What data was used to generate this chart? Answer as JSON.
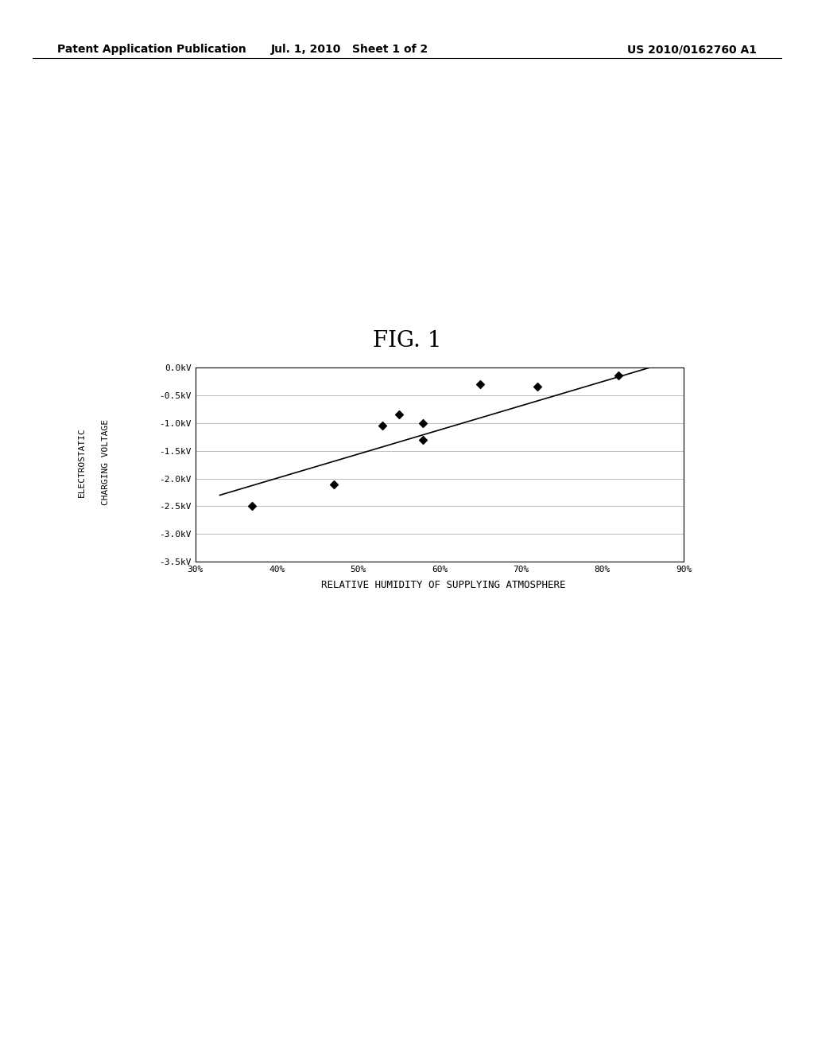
{
  "title": "FIG. 1",
  "xlabel": "RELATIVE HUMIDITY OF SUPPLYING ATMOSPHERE",
  "ylabel_line1": "ELECTROSTATIC",
  "ylabel_line2": "CHARGING VOLTAGE",
  "scatter_x": [
    37,
    47,
    53,
    55,
    58,
    58,
    65,
    72,
    82
  ],
  "scatter_y": [
    -2.5,
    -2.1,
    -1.05,
    -0.85,
    -1.0,
    -1.3,
    -0.3,
    -0.35,
    -0.15
  ],
  "trendline_x": [
    33,
    87
  ],
  "trendline_y": [
    -2.3,
    0.05
  ],
  "xlim": [
    30,
    90
  ],
  "ylim_min": -3.5,
  "ylim_max": 0.0,
  "xticks": [
    30,
    40,
    50,
    60,
    70,
    80,
    90
  ],
  "yticks": [
    0.0,
    -0.5,
    -1.0,
    -1.5,
    -2.0,
    -2.5,
    -3.0,
    -3.5
  ],
  "ytick_labels": [
    "0.0kV",
    "-0.5kV",
    "-1.0kV",
    "-1.5kV",
    "-2.0kV",
    "-2.5kV",
    "-3.0kV",
    "-3.5kV"
  ],
  "xtick_labels": [
    "30%",
    "40%",
    "50%",
    "60%",
    "70%",
    "80%",
    "90%"
  ],
  "header_left": "Patent Application Publication",
  "header_mid": "Jul. 1, 2010   Sheet 1 of 2",
  "header_right": "US 2010/0162760 A1",
  "marker_color": "#000000",
  "line_color": "#000000",
  "background_color": "#ffffff",
  "grid_color": "#bbbbbb",
  "fig_title_fontsize": 20,
  "header_fontsize": 10,
  "tick_fontsize": 8,
  "xlabel_fontsize": 9,
  "ylabel_fontsize": 8
}
